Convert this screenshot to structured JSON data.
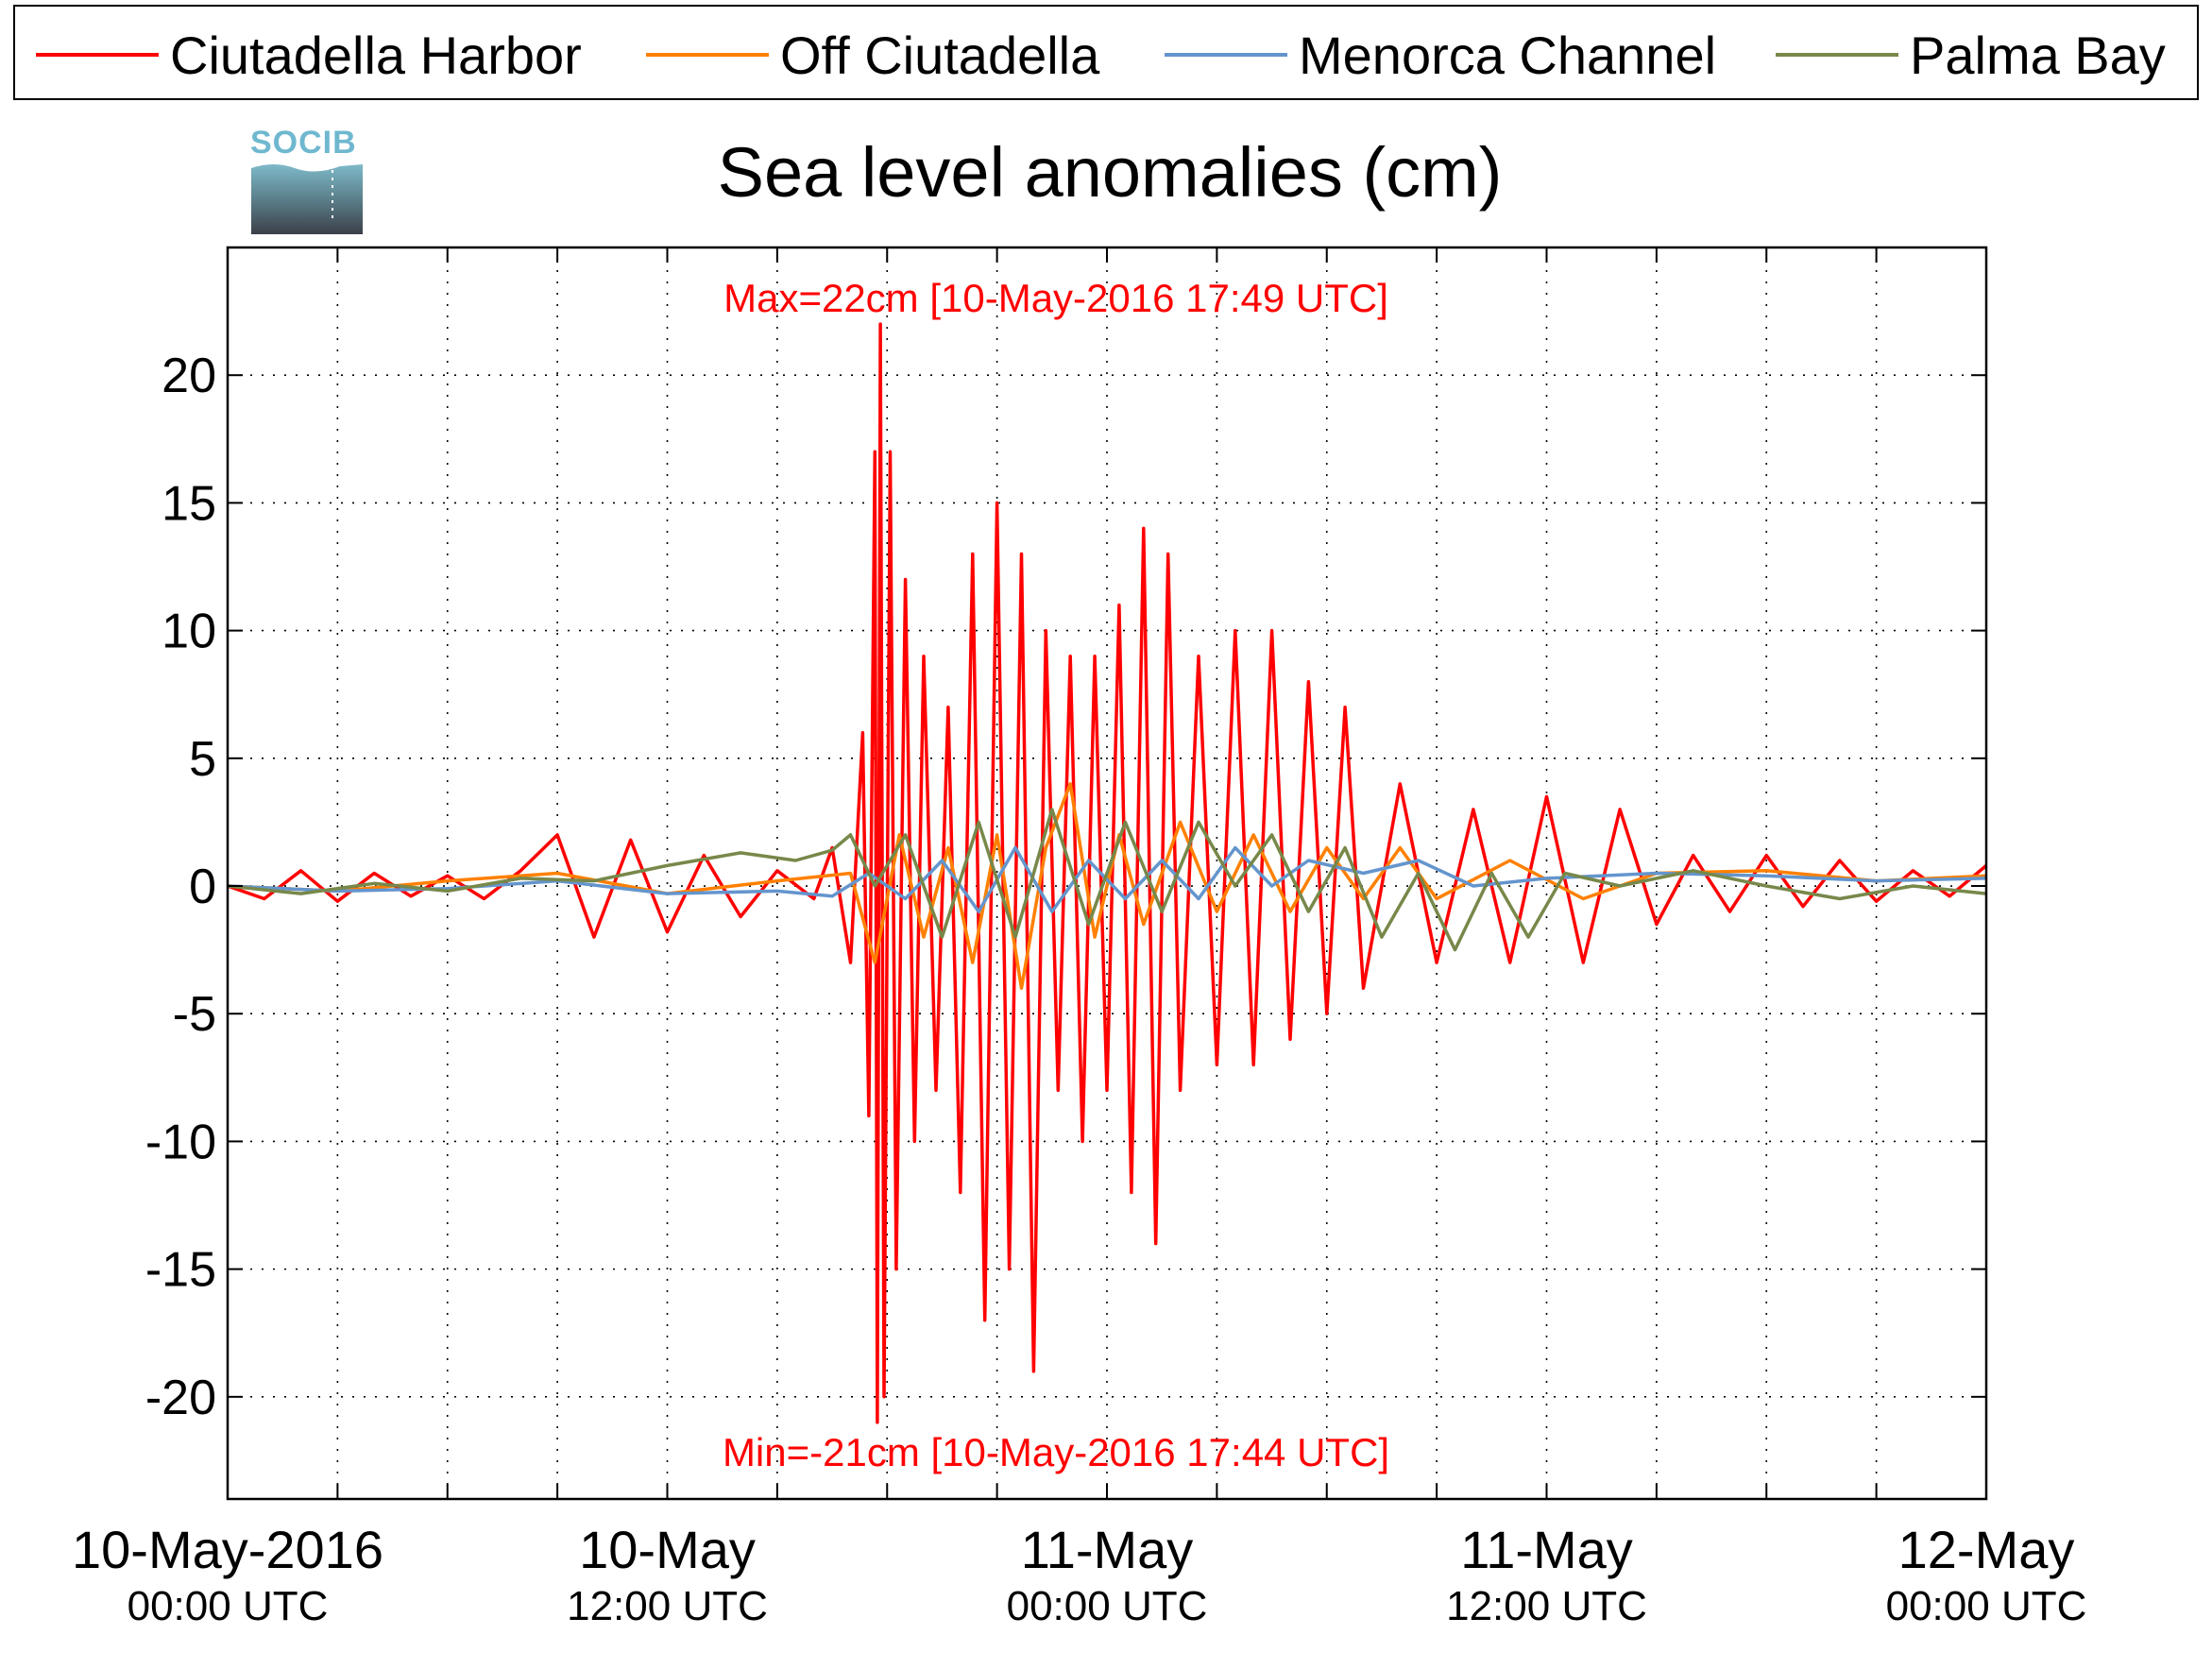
{
  "logo": {
    "text": "SOCIB"
  },
  "chart_data": {
    "type": "line",
    "title": "Sea level anomalies (cm)",
    "xlabel": "",
    "ylabel": "",
    "ylim": [
      -24,
      25
    ],
    "xlim": [
      "2016-05-10T00:00",
      "2016-05-12T00:00"
    ],
    "yticks": [
      20,
      15,
      10,
      5,
      0,
      -5,
      -10,
      -15,
      -20
    ],
    "ytick_labels": [
      "20",
      "15",
      "10",
      "5",
      "0",
      "-5",
      "-10",
      "-15",
      "-20"
    ],
    "xticks": [
      {
        "time": "2016-05-10T00:00",
        "label": "10-May-2016",
        "sublabel": "00:00 UTC"
      },
      {
        "time": "2016-05-10T12:00",
        "label": "10-May",
        "sublabel": "12:00 UTC"
      },
      {
        "time": "2016-05-11T00:00",
        "label": "11-May",
        "sublabel": "00:00 UTC"
      },
      {
        "time": "2016-05-11T12:00",
        "label": "11-May",
        "sublabel": "12:00 UTC"
      },
      {
        "time": "2016-05-12T00:00",
        "label": "12-May",
        "sublabel": "00:00 UTC"
      }
    ],
    "grid": true,
    "legend_position": "top",
    "series": [
      {
        "name": "Ciutadella Harbor",
        "color": "#ff0000",
        "points": [
          {
            "time": "2016-05-10T00:00",
            "value": 0
          },
          {
            "time": "2016-05-10T01:00",
            "value": -0.5
          },
          {
            "time": "2016-05-10T02:00",
            "value": 0.6
          },
          {
            "time": "2016-05-10T03:00",
            "value": -0.6
          },
          {
            "time": "2016-05-10T04:00",
            "value": 0.5
          },
          {
            "time": "2016-05-10T05:00",
            "value": -0.4
          },
          {
            "time": "2016-05-10T06:00",
            "value": 0.4
          },
          {
            "time": "2016-05-10T07:00",
            "value": -0.5
          },
          {
            "time": "2016-05-10T08:00",
            "value": 0.6
          },
          {
            "time": "2016-05-10T09:00",
            "value": 2
          },
          {
            "time": "2016-05-10T10:00",
            "value": -2
          },
          {
            "time": "2016-05-10T11:00",
            "value": 1.8
          },
          {
            "time": "2016-05-10T12:00",
            "value": -1.8
          },
          {
            "time": "2016-05-10T13:00",
            "value": 1.2
          },
          {
            "time": "2016-05-10T14:00",
            "value": -1.2
          },
          {
            "time": "2016-05-10T15:00",
            "value": 0.6
          },
          {
            "time": "2016-05-10T16:00",
            "value": -0.5
          },
          {
            "time": "2016-05-10T16:30",
            "value": 1.5
          },
          {
            "time": "2016-05-10T17:00",
            "value": -3
          },
          {
            "time": "2016-05-10T17:20",
            "value": 6
          },
          {
            "time": "2016-05-10T17:30",
            "value": -9
          },
          {
            "time": "2016-05-10T17:40",
            "value": 17
          },
          {
            "time": "2016-05-10T17:44",
            "value": -21
          },
          {
            "time": "2016-05-10T17:49",
            "value": 22
          },
          {
            "time": "2016-05-10T17:55",
            "value": -20
          },
          {
            "time": "2016-05-10T18:05",
            "value": 17
          },
          {
            "time": "2016-05-10T18:15",
            "value": -15
          },
          {
            "time": "2016-05-10T18:30",
            "value": 12
          },
          {
            "time": "2016-05-10T18:45",
            "value": -10
          },
          {
            "time": "2016-05-10T19:00",
            "value": 9
          },
          {
            "time": "2016-05-10T19:20",
            "value": -8
          },
          {
            "time": "2016-05-10T19:40",
            "value": 7
          },
          {
            "time": "2016-05-10T20:00",
            "value": -12
          },
          {
            "time": "2016-05-10T20:20",
            "value": 13
          },
          {
            "time": "2016-05-10T20:40",
            "value": -17
          },
          {
            "time": "2016-05-10T21:00",
            "value": 15
          },
          {
            "time": "2016-05-10T21:20",
            "value": -15
          },
          {
            "time": "2016-05-10T21:40",
            "value": 13
          },
          {
            "time": "2016-05-10T22:00",
            "value": -19
          },
          {
            "time": "2016-05-10T22:20",
            "value": 10
          },
          {
            "time": "2016-05-10T22:40",
            "value": -8
          },
          {
            "time": "2016-05-10T23:00",
            "value": 9
          },
          {
            "time": "2016-05-10T23:20",
            "value": -10
          },
          {
            "time": "2016-05-10T23:40",
            "value": 9
          },
          {
            "time": "2016-05-11T00:00",
            "value": -8
          },
          {
            "time": "2016-05-11T00:20",
            "value": 11
          },
          {
            "time": "2016-05-11T00:40",
            "value": -12
          },
          {
            "time": "2016-05-11T01:00",
            "value": 14
          },
          {
            "time": "2016-05-11T01:20",
            "value": -14
          },
          {
            "time": "2016-05-11T01:40",
            "value": 13
          },
          {
            "time": "2016-05-11T02:00",
            "value": -8
          },
          {
            "time": "2016-05-11T02:30",
            "value": 9
          },
          {
            "time": "2016-05-11T03:00",
            "value": -7
          },
          {
            "time": "2016-05-11T03:30",
            "value": 10
          },
          {
            "time": "2016-05-11T04:00",
            "value": -7
          },
          {
            "time": "2016-05-11T04:30",
            "value": 10
          },
          {
            "time": "2016-05-11T05:00",
            "value": -6
          },
          {
            "time": "2016-05-11T05:30",
            "value": 8
          },
          {
            "time": "2016-05-11T06:00",
            "value": -5
          },
          {
            "time": "2016-05-11T06:30",
            "value": 7
          },
          {
            "time": "2016-05-11T07:00",
            "value": -4
          },
          {
            "time": "2016-05-11T08:00",
            "value": 4
          },
          {
            "time": "2016-05-11T09:00",
            "value": -3
          },
          {
            "time": "2016-05-11T10:00",
            "value": 3
          },
          {
            "time": "2016-05-11T11:00",
            "value": -3
          },
          {
            "time": "2016-05-11T12:00",
            "value": 3.5
          },
          {
            "time": "2016-05-11T13:00",
            "value": -3
          },
          {
            "time": "2016-05-11T14:00",
            "value": 3
          },
          {
            "time": "2016-05-11T15:00",
            "value": -1.5
          },
          {
            "time": "2016-05-11T16:00",
            "value": 1.2
          },
          {
            "time": "2016-05-11T17:00",
            "value": -1
          },
          {
            "time": "2016-05-11T18:00",
            "value": 1.2
          },
          {
            "time": "2016-05-11T19:00",
            "value": -0.8
          },
          {
            "time": "2016-05-11T20:00",
            "value": 1
          },
          {
            "time": "2016-05-11T21:00",
            "value": -0.6
          },
          {
            "time": "2016-05-11T22:00",
            "value": 0.6
          },
          {
            "time": "2016-05-11T23:00",
            "value": -0.4
          },
          {
            "time": "2016-05-12T00:00",
            "value": 0.8
          }
        ]
      },
      {
        "name": "Off Ciutadella",
        "color": "#ff8000",
        "points": [
          {
            "time": "2016-05-10T00:00",
            "value": 0
          },
          {
            "time": "2016-05-10T03:00",
            "value": -0.2
          },
          {
            "time": "2016-05-10T06:00",
            "value": 0.2
          },
          {
            "time": "2016-05-10T09:00",
            "value": 0.5
          },
          {
            "time": "2016-05-10T12:00",
            "value": -0.3
          },
          {
            "time": "2016-05-10T15:00",
            "value": 0.2
          },
          {
            "time": "2016-05-10T17:00",
            "value": 0.5
          },
          {
            "time": "2016-05-10T17:40",
            "value": -3
          },
          {
            "time": "2016-05-10T18:20",
            "value": 2
          },
          {
            "time": "2016-05-10T19:00",
            "value": -2
          },
          {
            "time": "2016-05-10T19:40",
            "value": 1.5
          },
          {
            "time": "2016-05-10T20:20",
            "value": -3
          },
          {
            "time": "2016-05-10T21:00",
            "value": 2
          },
          {
            "time": "2016-05-10T21:40",
            "value": -4
          },
          {
            "time": "2016-05-10T22:20",
            "value": 1.5
          },
          {
            "time": "2016-05-10T23:00",
            "value": 4
          },
          {
            "time": "2016-05-10T23:40",
            "value": -2
          },
          {
            "time": "2016-05-11T00:20",
            "value": 2
          },
          {
            "time": "2016-05-11T01:00",
            "value": -1.5
          },
          {
            "time": "2016-05-11T02:00",
            "value": 2.5
          },
          {
            "time": "2016-05-11T03:00",
            "value": -1
          },
          {
            "time": "2016-05-11T04:00",
            "value": 2
          },
          {
            "time": "2016-05-11T05:00",
            "value": -1
          },
          {
            "time": "2016-05-11T06:00",
            "value": 1.5
          },
          {
            "time": "2016-05-11T07:00",
            "value": -0.5
          },
          {
            "time": "2016-05-11T08:00",
            "value": 1.5
          },
          {
            "time": "2016-05-11T09:00",
            "value": -0.5
          },
          {
            "time": "2016-05-11T11:00",
            "value": 1
          },
          {
            "time": "2016-05-11T13:00",
            "value": -0.5
          },
          {
            "time": "2016-05-11T15:00",
            "value": 0.5
          },
          {
            "time": "2016-05-11T18:00",
            "value": 0.6
          },
          {
            "time": "2016-05-11T21:00",
            "value": 0.2
          },
          {
            "time": "2016-05-12T00:00",
            "value": 0.4
          }
        ]
      },
      {
        "name": "Menorca Channel",
        "color": "#6495cd",
        "points": [
          {
            "time": "2016-05-10T00:00",
            "value": 0
          },
          {
            "time": "2016-05-10T03:00",
            "value": -0.2
          },
          {
            "time": "2016-05-10T06:00",
            "value": -0.1
          },
          {
            "time": "2016-05-10T09:00",
            "value": 0.2
          },
          {
            "time": "2016-05-10T12:00",
            "value": -0.3
          },
          {
            "time": "2016-05-10T15:00",
            "value": -0.2
          },
          {
            "time": "2016-05-10T16:30",
            "value": -0.4
          },
          {
            "time": "2016-05-10T17:30",
            "value": 0.5
          },
          {
            "time": "2016-05-10T18:30",
            "value": -0.5
          },
          {
            "time": "2016-05-10T19:30",
            "value": 1
          },
          {
            "time": "2016-05-10T20:30",
            "value": -1
          },
          {
            "time": "2016-05-10T21:30",
            "value": 1.5
          },
          {
            "time": "2016-05-10T22:30",
            "value": -1
          },
          {
            "time": "2016-05-10T23:30",
            "value": 1
          },
          {
            "time": "2016-05-11T00:30",
            "value": -0.5
          },
          {
            "time": "2016-05-11T01:30",
            "value": 1
          },
          {
            "time": "2016-05-11T02:30",
            "value": -0.5
          },
          {
            "time": "2016-05-11T03:30",
            "value": 1.5
          },
          {
            "time": "2016-05-11T04:30",
            "value": 0
          },
          {
            "time": "2016-05-11T05:30",
            "value": 1
          },
          {
            "time": "2016-05-11T07:00",
            "value": 0.5
          },
          {
            "time": "2016-05-11T08:30",
            "value": 1
          },
          {
            "time": "2016-05-11T10:00",
            "value": 0
          },
          {
            "time": "2016-05-11T12:00",
            "value": 0.3
          },
          {
            "time": "2016-05-11T15:00",
            "value": 0.5
          },
          {
            "time": "2016-05-11T18:00",
            "value": 0.4
          },
          {
            "time": "2016-05-11T21:00",
            "value": 0.2
          },
          {
            "time": "2016-05-12T00:00",
            "value": 0.3
          }
        ]
      },
      {
        "name": "Palma Bay",
        "color": "#77884a",
        "points": [
          {
            "time": "2016-05-10T00:00",
            "value": 0
          },
          {
            "time": "2016-05-10T02:00",
            "value": -0.3
          },
          {
            "time": "2016-05-10T04:00",
            "value": 0.1
          },
          {
            "time": "2016-05-10T06:00",
            "value": -0.2
          },
          {
            "time": "2016-05-10T08:00",
            "value": 0.3
          },
          {
            "time": "2016-05-10T10:00",
            "value": 0.2
          },
          {
            "time": "2016-05-10T12:00",
            "value": 0.8
          },
          {
            "time": "2016-05-10T14:00",
            "value": 1.3
          },
          {
            "time": "2016-05-10T15:30",
            "value": 1.0
          },
          {
            "time": "2016-05-10T16:30",
            "value": 1.4
          },
          {
            "time": "2016-05-10T17:00",
            "value": 2
          },
          {
            "time": "2016-05-10T17:40",
            "value": 0
          },
          {
            "time": "2016-05-10T18:30",
            "value": 2
          },
          {
            "time": "2016-05-10T19:30",
            "value": -2
          },
          {
            "time": "2016-05-10T20:30",
            "value": 2.5
          },
          {
            "time": "2016-05-10T21:30",
            "value": -2
          },
          {
            "time": "2016-05-10T22:30",
            "value": 3
          },
          {
            "time": "2016-05-10T23:30",
            "value": -1.5
          },
          {
            "time": "2016-05-11T00:30",
            "value": 2.5
          },
          {
            "time": "2016-05-11T01:30",
            "value": -1
          },
          {
            "time": "2016-05-11T02:30",
            "value": 2.5
          },
          {
            "time": "2016-05-11T03:30",
            "value": 0
          },
          {
            "time": "2016-05-11T04:30",
            "value": 2
          },
          {
            "time": "2016-05-11T05:30",
            "value": -1
          },
          {
            "time": "2016-05-11T06:30",
            "value": 1.5
          },
          {
            "time": "2016-05-11T07:30",
            "value": -2
          },
          {
            "time": "2016-05-11T08:30",
            "value": 0.5
          },
          {
            "time": "2016-05-11T09:30",
            "value": -2.5
          },
          {
            "time": "2016-05-11T10:30",
            "value": 0.5
          },
          {
            "time": "2016-05-11T11:30",
            "value": -2
          },
          {
            "time": "2016-05-11T12:30",
            "value": 0.5
          },
          {
            "time": "2016-05-11T14:00",
            "value": 0
          },
          {
            "time": "2016-05-11T16:00",
            "value": 0.6
          },
          {
            "time": "2016-05-11T18:00",
            "value": 0
          },
          {
            "time": "2016-05-11T20:00",
            "value": -0.5
          },
          {
            "time": "2016-05-11T22:00",
            "value": 0
          },
          {
            "time": "2016-05-12T00:00",
            "value": -0.3
          }
        ]
      }
    ],
    "annotations": {
      "max": {
        "text": "Max=22cm [10-May-2016 17:49 UTC]",
        "color": "#ff0000"
      },
      "min": {
        "text": "Min=-21cm [10-May-2016 17:44 UTC]",
        "color": "#ff0000"
      }
    }
  }
}
